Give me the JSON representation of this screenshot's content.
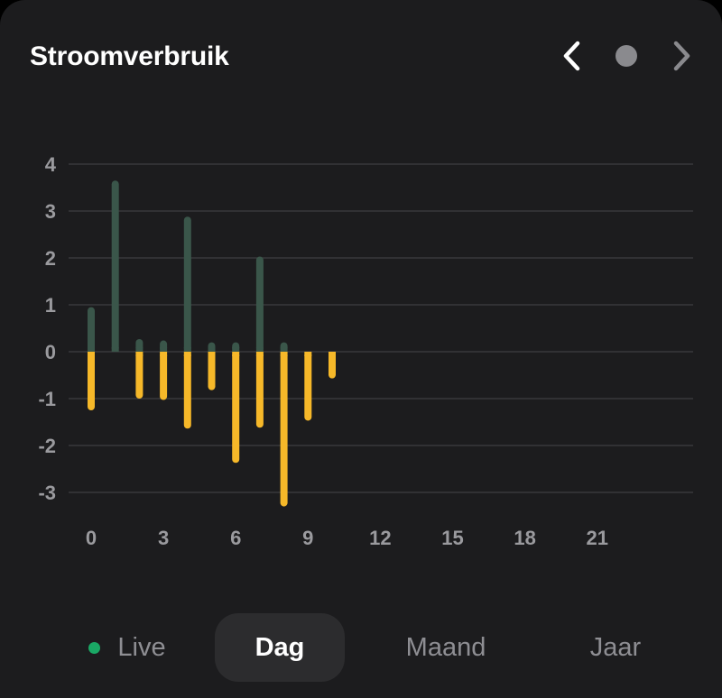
{
  "header": {
    "title": "Stroomverbruik",
    "prev_icon": "chevron-left-icon",
    "next_icon": "chevron-right-icon",
    "current_icon": "dot-icon"
  },
  "colors": {
    "background": "#1c1c1e",
    "consumption": "#3a564a",
    "return": "#f6b829",
    "live": "#1aa865",
    "grid": "#3e3e42",
    "tick_text": "#9a9a9e",
    "selected_tab_bg": "#2c2c2e"
  },
  "chart_data": {
    "type": "bar",
    "grid": true,
    "ylim": [
      -3.4,
      4.2
    ],
    "xlim": [
      -0.5,
      24.5
    ],
    "y_ticks": [
      4,
      3,
      2,
      1,
      0,
      -1,
      -2,
      -3
    ],
    "x_ticks": [
      0,
      3,
      6,
      9,
      12,
      15,
      18,
      21
    ],
    "x": [
      0,
      1,
      2,
      3,
      4,
      5,
      6,
      7,
      8,
      9,
      10,
      11
    ],
    "series": [
      {
        "color": "#3a564a",
        "values": [
          0.95,
          3.65,
          0.27,
          0.24,
          2.88,
          0.2,
          0.2,
          2.03,
          0.2,
          0,
          0,
          0
        ]
      },
      {
        "color": "#f6b829",
        "values": [
          -1.25,
          0,
          -1.0,
          -1.03,
          -1.64,
          -0.82,
          -2.37,
          -1.62,
          -3.3,
          -1.47,
          -0.57,
          0
        ]
      }
    ]
  },
  "tabs": {
    "live": "Live",
    "dag": "Dag",
    "maand": "Maand",
    "jaar": "Jaar"
  }
}
